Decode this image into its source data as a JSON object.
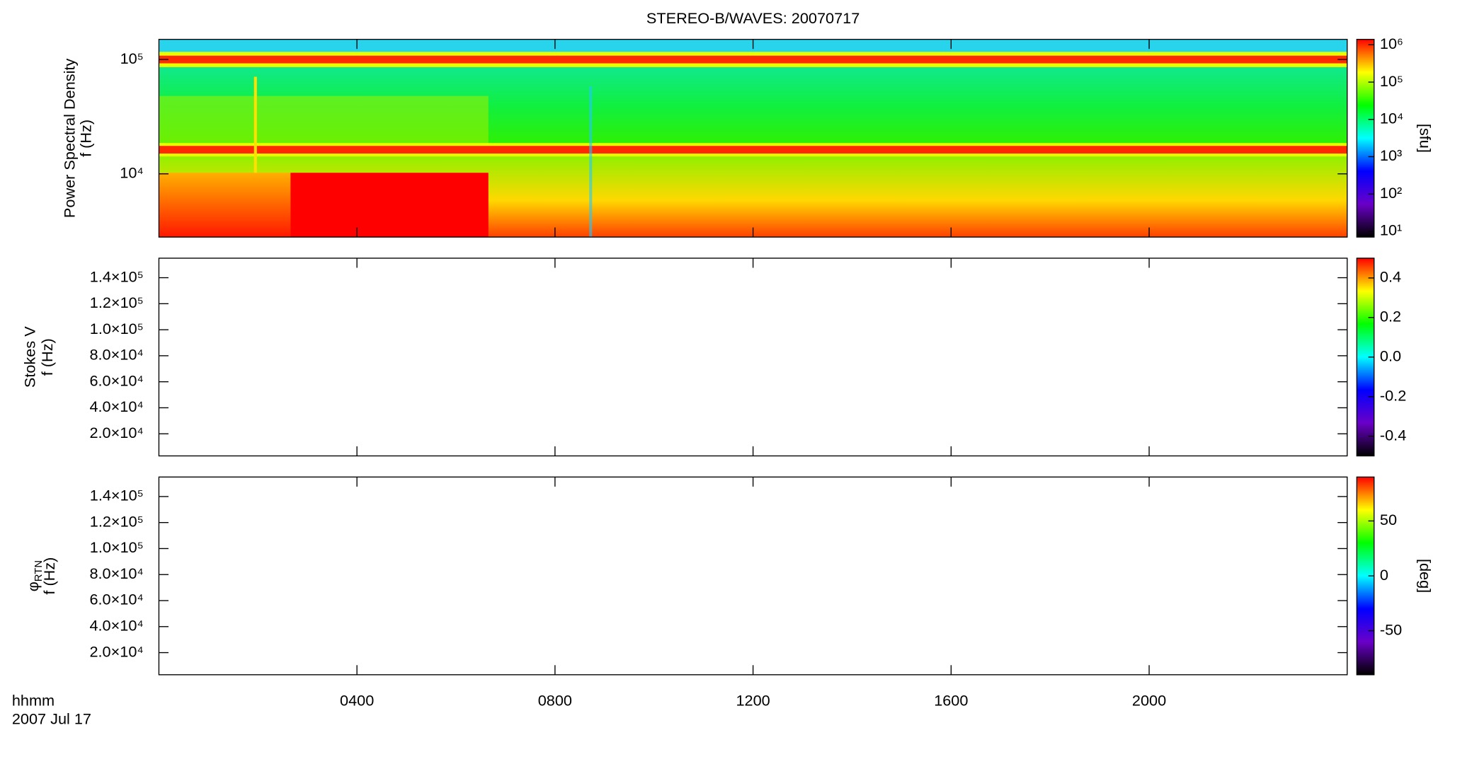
{
  "chart_data": [
    {
      "type": "heatmap",
      "title": "STEREO-B/WAVES: 20070717",
      "ylabel": [
        "Power Spectral Density",
        "f (Hz)"
      ],
      "ylog": true,
      "ylim": [
        2800,
        150000
      ],
      "yticks": [
        {
          "value": 10000,
          "label": "10⁴"
        },
        {
          "value": 100000,
          "label": "10⁵"
        }
      ],
      "colorbar_label": "[sfu]",
      "clog": true,
      "clim": [
        7,
        1400000
      ],
      "cticks": [
        {
          "value": 10,
          "label": "10¹"
        },
        {
          "value": 100,
          "label": "10²"
        },
        {
          "value": 1000,
          "label": "10³"
        },
        {
          "value": 10000,
          "label": "10⁴"
        },
        {
          "value": 100000,
          "label": "10⁵"
        },
        {
          "value": 1000000,
          "label": "10⁶"
        }
      ],
      "colormap": [
        "#000000",
        "#6a00c8",
        "#0000ff",
        "#00ffff",
        "#00ff00",
        "#ffff00",
        "#ff0000"
      ]
    },
    {
      "type": "heatmap",
      "ylabel": [
        "Stokes V",
        "f (Hz)"
      ],
      "ylim": [
        3000,
        155000
      ],
      "yticks": [
        {
          "value": 20000,
          "label": "2.0×10⁴"
        },
        {
          "value": 40000,
          "label": "4.0×10⁴"
        },
        {
          "value": 60000,
          "label": "6.0×10⁴"
        },
        {
          "value": 80000,
          "label": "8.0×10⁴"
        },
        {
          "value": 100000,
          "label": "1.0×10⁵"
        },
        {
          "value": 120000,
          "label": "1.2×10⁵"
        },
        {
          "value": 140000,
          "label": "1.4×10⁵"
        }
      ],
      "clim": [
        -0.5,
        0.5
      ],
      "cticks": [
        -0.4,
        -0.2,
        {
          "value": 0,
          "label": "0.0"
        },
        0.2,
        0.4
      ],
      "colormap": [
        "#000000",
        "#6a00c8",
        "#0000ff",
        "#00ffff",
        "#00ff00",
        "#ffff00",
        "#ff0000"
      ]
    },
    {
      "type": "heatmap",
      "ylabel": [
        "φ",
        "f (Hz)"
      ],
      "ylabel_sub": "RTN",
      "ylim": [
        3000,
        155000
      ],
      "yticks": [
        {
          "value": 20000,
          "label": "2.0×10⁴"
        },
        {
          "value": 40000,
          "label": "4.0×10⁴"
        },
        {
          "value": 60000,
          "label": "6.0×10⁴"
        },
        {
          "value": 80000,
          "label": "8.0×10⁴"
        },
        {
          "value": 100000,
          "label": "1.0×10⁵"
        },
        {
          "value": 120000,
          "label": "1.2×10⁵"
        },
        {
          "value": 140000,
          "label": "1.4×10⁵"
        }
      ],
      "colorbar_label": "[deg]",
      "clim": [
        -90,
        90
      ],
      "cticks": [
        -50,
        0,
        50
      ],
      "colormap": [
        "#000000",
        "#6a00c8",
        "#0000ff",
        "#00ffff",
        "#00ff00",
        "#ffff00",
        "#ff0000"
      ],
      "xlim": [
        0,
        24
      ],
      "xticks": [
        {
          "value": 4,
          "label": "0400"
        },
        {
          "value": 8,
          "label": "0800"
        },
        {
          "value": 12,
          "label": "1200"
        },
        {
          "value": 16,
          "label": "1600"
        },
        {
          "value": 20,
          "label": "2000"
        }
      ],
      "xlabel": "hhmm",
      "xdate": "2007 Jul 17"
    }
  ]
}
